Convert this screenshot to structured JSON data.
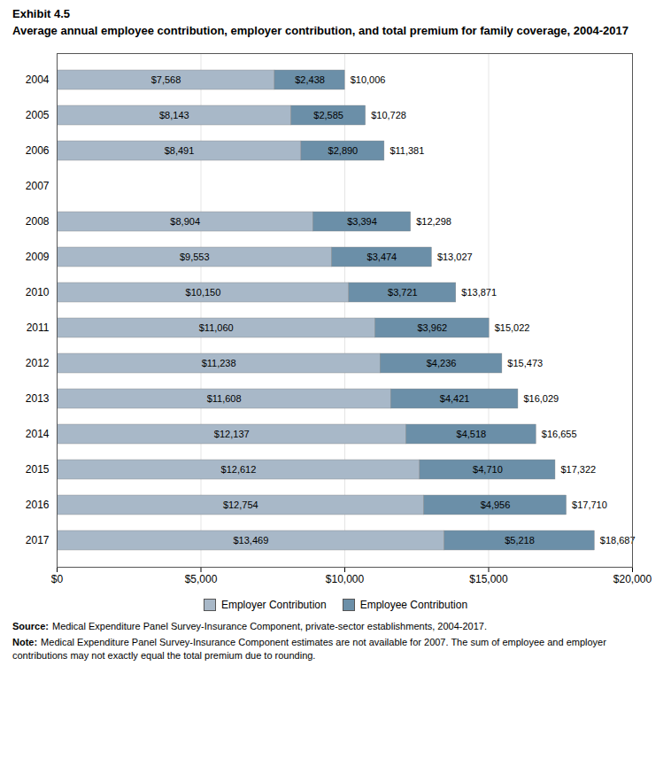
{
  "chart_data": {
    "type": "bar",
    "orientation": "horizontal",
    "stacked": true,
    "data_labels": true,
    "grid": true,
    "legend": "bottom",
    "title": "Exhibit 4.5",
    "subtitle": "Average annual employee contribution, employer contribution, and total premium for family coverage, 2004-2017",
    "categories": [
      "2004",
      "2005",
      "2006",
      "2007",
      "2008",
      "2009",
      "2010",
      "2011",
      "2012",
      "2013",
      "2014",
      "2015",
      "2016",
      "2017"
    ],
    "series": [
      {
        "name": "Employer Contribution",
        "color": "#a8b8c8",
        "values": [
          7568,
          8143,
          8491,
          null,
          8904,
          9553,
          10150,
          11060,
          11238,
          11608,
          12137,
          12612,
          12754,
          13469
        ],
        "value_labels": [
          "$7,568",
          "$8,143",
          "$8,491",
          null,
          "$8,904",
          "$9,553",
          "$10,150",
          "$11,060",
          "$11,238",
          "$11,608",
          "$12,137",
          "$12,612",
          "$12,754",
          "$13,469"
        ]
      },
      {
        "name": "Employee Contribution",
        "color": "#6b8fa8",
        "values": [
          2438,
          2585,
          2890,
          null,
          3394,
          3474,
          3721,
          3962,
          4236,
          4421,
          4518,
          4710,
          4956,
          5218
        ],
        "value_labels": [
          "$2,438",
          "$2,585",
          "$2,890",
          null,
          "$3,394",
          "$3,474",
          "$3,721",
          "$3,962",
          "$4,236",
          "$4,421",
          "$4,518",
          "$4,710",
          "$4,956",
          "$5,218"
        ]
      }
    ],
    "totals": [
      10006,
      10728,
      11381,
      null,
      12298,
      13027,
      13871,
      15022,
      15473,
      16029,
      16655,
      17322,
      17710,
      18687
    ],
    "total_labels": [
      "$10,006",
      "$10,728",
      "$11,381",
      null,
      "$12,298",
      "$13,027",
      "$13,871",
      "$15,022",
      "$15,473",
      "$16,029",
      "$16,655",
      "$17,322",
      "$17,710",
      "$18,687"
    ],
    "xlim": [
      0,
      20000
    ],
    "xticks": [
      {
        "value": 0,
        "label": "$0"
      },
      {
        "value": 5000,
        "label": "$5,000"
      },
      {
        "value": 10000,
        "label": "$10,000"
      },
      {
        "value": 15000,
        "label": "$15,000"
      },
      {
        "value": 20000,
        "label": "$20,000"
      }
    ],
    "source_label": "Source:",
    "source": "Medical Expenditure Panel Survey-Insurance Component, private-sector establishments, 2004-2017.",
    "note_label": "Note:",
    "note": "Medical Expenditure Panel Survey-Insurance Component estimates are not available for 2007. The sum of employee and employer contributions may not exactly equal the total premium due to rounding."
  }
}
